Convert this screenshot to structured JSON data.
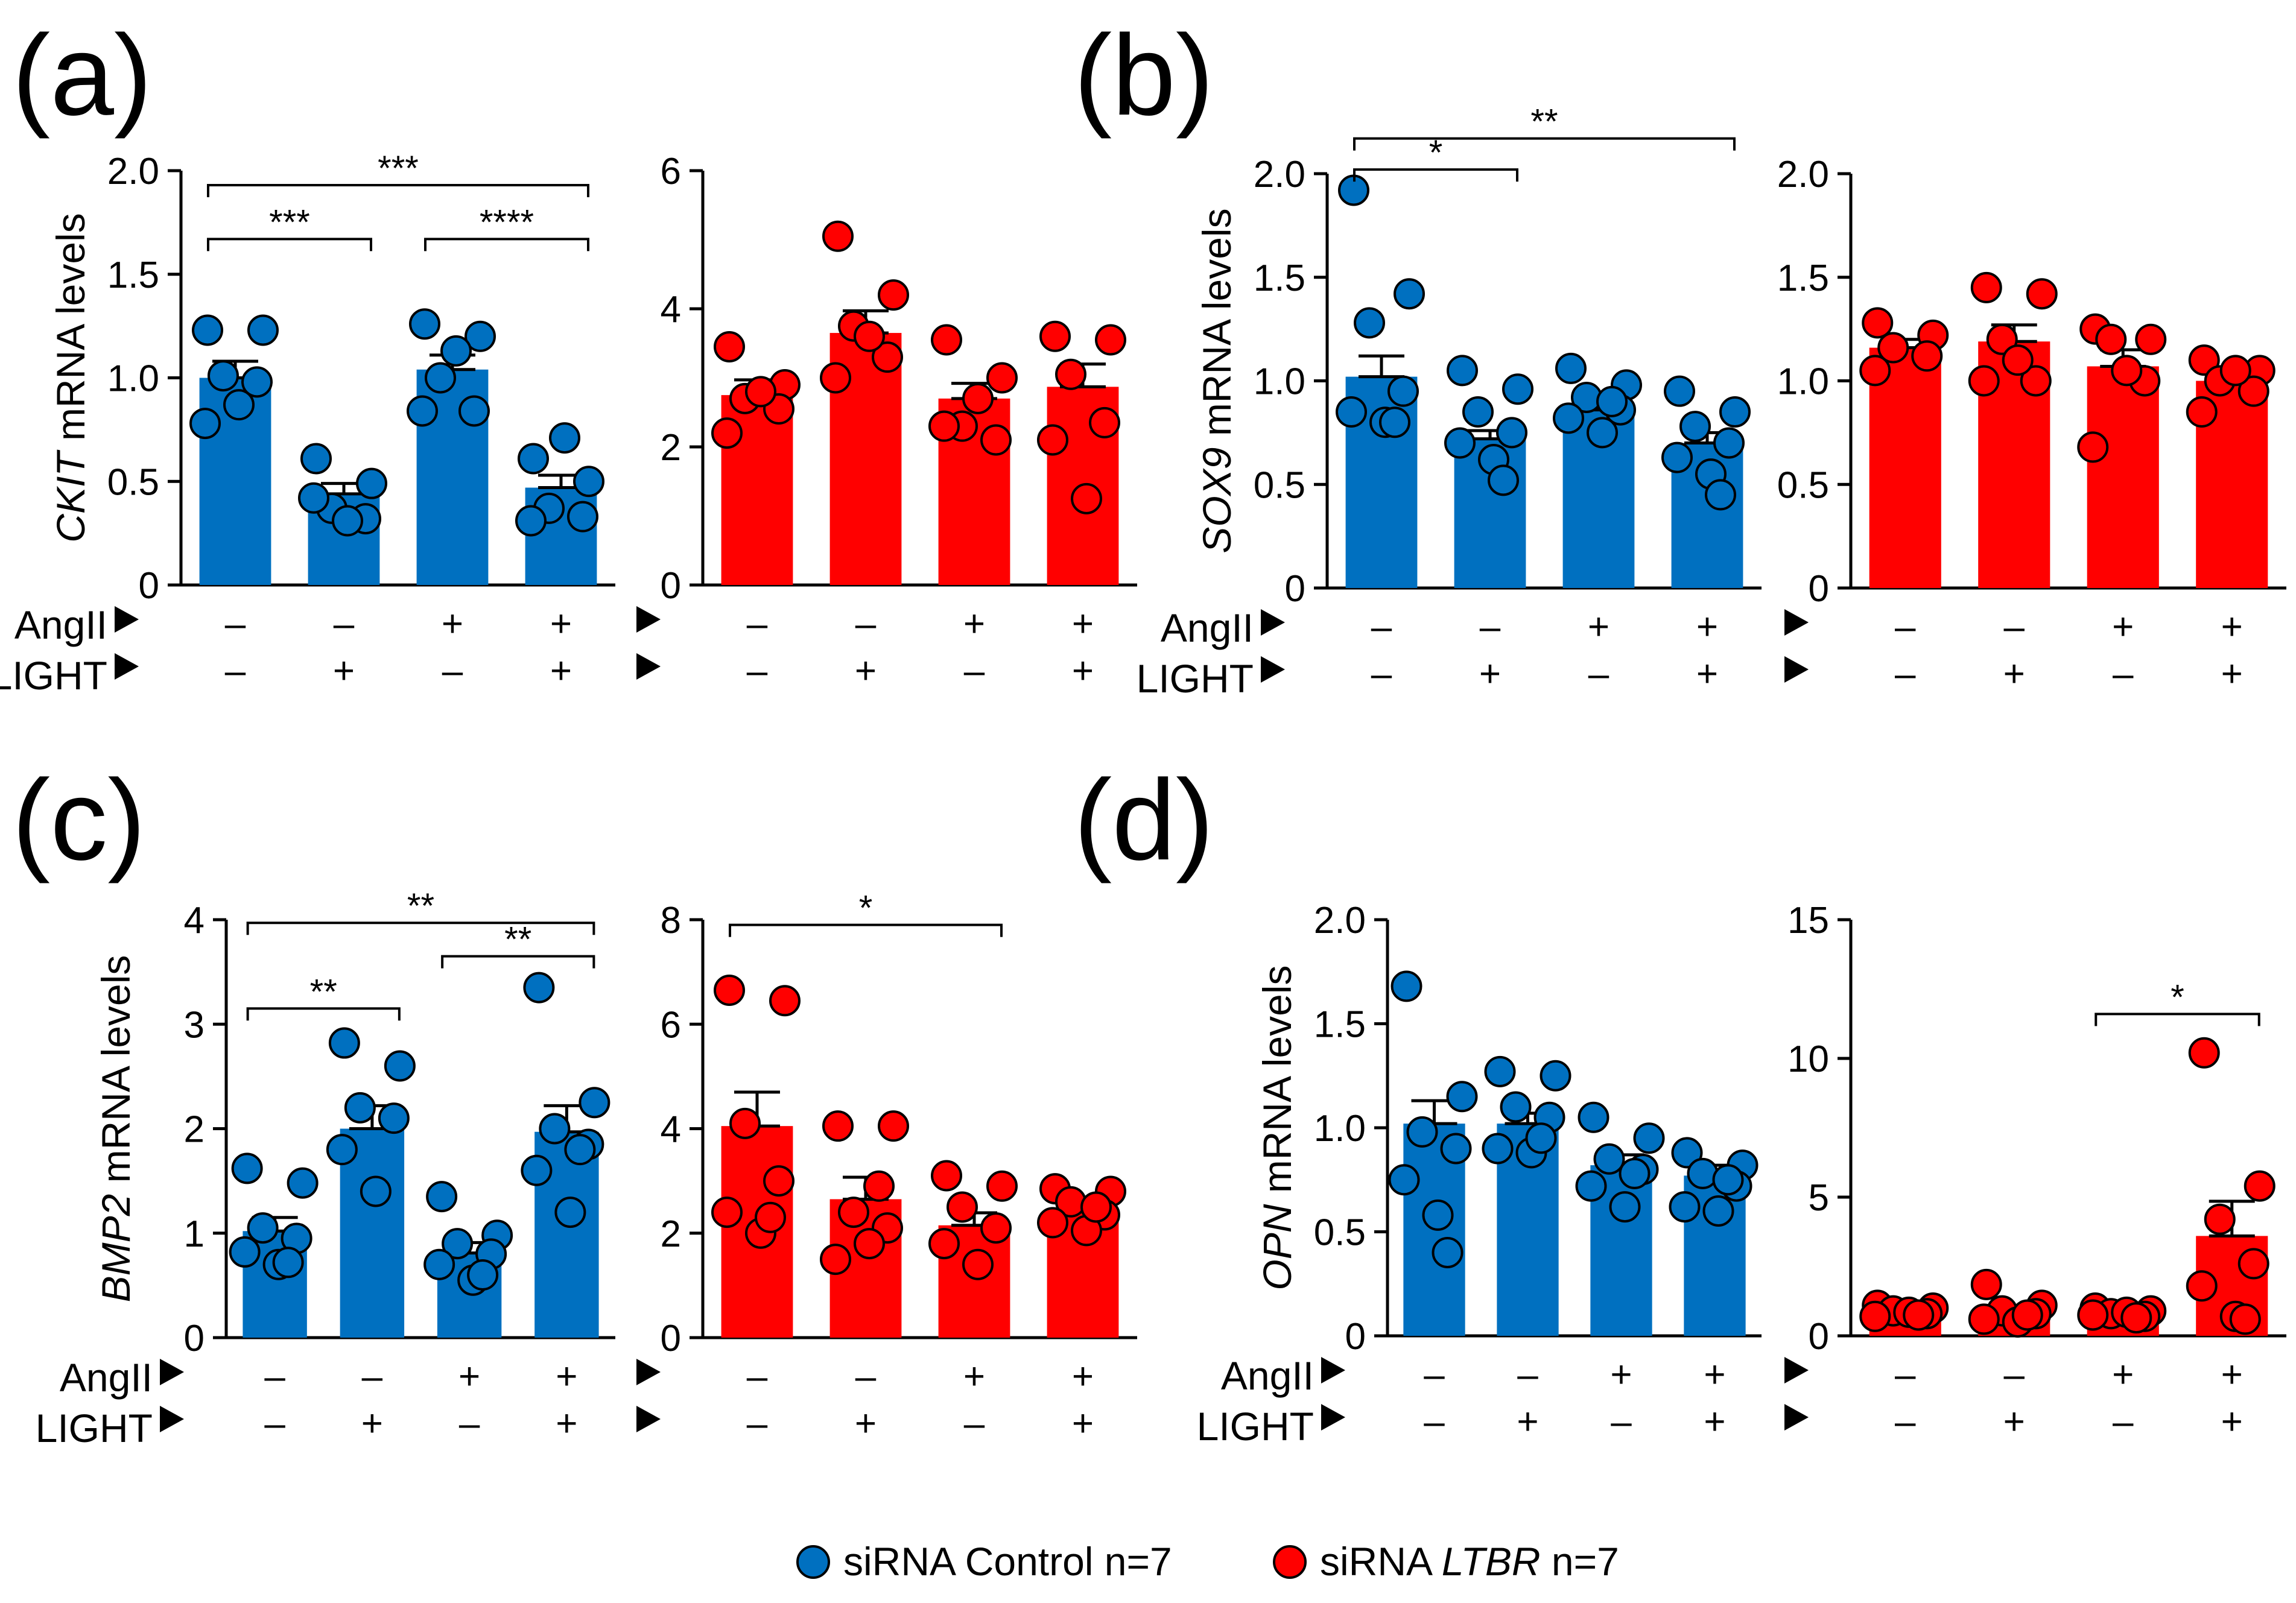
{
  "colors": {
    "control": "#0070C0",
    "ltbr": "#FF0000",
    "axis": "#000000"
  },
  "legend": {
    "control_label": "siRNA Control n=7",
    "ltbr_prefix": "siRNA ",
    "ltbr_gene": "LTBR",
    "ltbr_suffix": " n=7"
  },
  "treatment_labels": {
    "angii": "AngII",
    "light": "LIGHT"
  },
  "chart_data": [
    {
      "id": "a",
      "panel_label": "(a)",
      "type": "bar",
      "series": "siRNA Control",
      "color": "control",
      "ylabel": {
        "gene": "CKIT",
        "rest": " mRNA levels"
      },
      "ylim": [
        0,
        2.0
      ],
      "yticks": [
        "0",
        "0.5",
        "1.0",
        "1.5",
        "2.0"
      ],
      "categories": [
        "AngII- LIGHT-",
        "AngII- LIGHT+",
        "AngII+ LIGHT-",
        "AngII+ LIGHT+"
      ],
      "angii": [
        "–",
        "–",
        "+",
        "+"
      ],
      "light": [
        "–",
        "+",
        "–",
        "+"
      ],
      "values": [
        1.0,
        0.44,
        1.04,
        0.47
      ],
      "sem": [
        0.08,
        0.05,
        0.07,
        0.06
      ],
      "points": [
        [
          1.23,
          1.23,
          1.01,
          0.98,
          0.78,
          0.87
        ],
        [
          0.61,
          0.49,
          0.37,
          0.32,
          0.42,
          0.31
        ],
        [
          1.26,
          1.2,
          1.0,
          0.84,
          0.84,
          1.13
        ],
        [
          0.61,
          0.5,
          0.37,
          0.33,
          0.31,
          0.71
        ]
      ],
      "show_treatment_names": true,
      "significance": [
        {
          "from": 0,
          "to": 1,
          "label": "***",
          "level": 1.67
        },
        {
          "from": 2,
          "to": 3,
          "label": "****",
          "level": 1.67
        },
        {
          "from": 0,
          "to": 3,
          "label": "***",
          "level": 1.93
        }
      ]
    },
    {
      "id": "a2",
      "panel_label": "",
      "type": "bar",
      "series": "siRNA LTBR",
      "color": "ltbr",
      "ylabel": null,
      "ylim": [
        0,
        6
      ],
      "yticks": [
        "0",
        "2",
        "4",
        "6"
      ],
      "categories": [
        "AngII- LIGHT-",
        "AngII- LIGHT+",
        "AngII+ LIGHT-",
        "AngII+ LIGHT+"
      ],
      "angii": [
        "–",
        "–",
        "+",
        "+"
      ],
      "light": [
        "–",
        "+",
        "–",
        "+"
      ],
      "values": [
        2.75,
        3.65,
        2.7,
        2.87
      ],
      "sem": [
        0.22,
        0.32,
        0.22,
        0.33
      ],
      "points": [
        [
          3.45,
          2.9,
          2.7,
          2.55,
          2.2,
          2.8
        ],
        [
          5.05,
          4.2,
          3.75,
          3.3,
          3.0,
          3.6
        ],
        [
          3.55,
          3.0,
          2.3,
          2.1,
          2.3,
          2.7
        ],
        [
          3.6,
          3.55,
          3.05,
          2.35,
          2.1,
          1.25
        ]
      ],
      "show_treatment_names": false,
      "significance": []
    },
    {
      "id": "b",
      "panel_label": "(b)",
      "type": "bar",
      "series": "siRNA Control",
      "color": "control",
      "ylabel": {
        "gene": "SOX9",
        "rest": " mRNA levels"
      },
      "ylim": [
        0,
        2.0
      ],
      "yticks": [
        "0",
        "0.5",
        "1.0",
        "1.5",
        "2.0"
      ],
      "categories": [
        "AngII- LIGHT-",
        "AngII- LIGHT+",
        "AngII+ LIGHT-",
        "AngII+ LIGHT+"
      ],
      "angii": [
        "–",
        "–",
        "+",
        "+"
      ],
      "light": [
        "–",
        "+",
        "–",
        "+"
      ],
      "values": [
        1.02,
        0.72,
        0.86,
        0.7
      ],
      "sem": [
        0.1,
        0.04,
        0.03,
        0.05
      ],
      "points": [
        [
          1.92,
          1.42,
          1.28,
          0.95,
          0.85,
          0.8,
          0.8
        ],
        [
          1.05,
          0.96,
          0.85,
          0.75,
          0.7,
          0.62,
          0.52
        ],
        [
          1.06,
          0.98,
          0.92,
          0.86,
          0.82,
          0.75,
          0.9
        ],
        [
          0.95,
          0.85,
          0.78,
          0.7,
          0.63,
          0.55,
          0.45
        ]
      ],
      "show_treatment_names": true,
      "significance": [
        {
          "from": 0,
          "to": 1,
          "label": "*",
          "level": 2.02
        },
        {
          "from": 0,
          "to": 3,
          "label": "**",
          "level": 2.17
        }
      ]
    },
    {
      "id": "b2",
      "panel_label": "",
      "type": "bar",
      "series": "siRNA LTBR",
      "color": "ltbr",
      "ylabel": null,
      "ylim": [
        0,
        2.0
      ],
      "yticks": [
        "0",
        "0.5",
        "1.0",
        "1.5",
        "2.0"
      ],
      "categories": [
        "AngII- LIGHT-",
        "AngII- LIGHT+",
        "AngII+ LIGHT-",
        "AngII+ LIGHT+"
      ],
      "angii": [
        "–",
        "–",
        "+",
        "+"
      ],
      "light": [
        "–",
        "+",
        "–",
        "+"
      ],
      "values": [
        1.16,
        1.19,
        1.07,
        1.0
      ],
      "sem": [
        0.04,
        0.08,
        0.08,
        0.04
      ],
      "points": [
        [
          1.28,
          1.22,
          1.16,
          1.12,
          1.05
        ],
        [
          1.45,
          1.42,
          1.2,
          1.0,
          1.0,
          1.1
        ],
        [
          1.25,
          1.2,
          1.2,
          1.0,
          0.68,
          1.05
        ],
        [
          1.1,
          1.05,
          1.0,
          0.95,
          0.85,
          1.05
        ]
      ],
      "show_treatment_names": false,
      "significance": []
    },
    {
      "id": "c",
      "panel_label": "(c)",
      "type": "bar",
      "series": "siRNA Control",
      "color": "control",
      "ylabel": {
        "gene": "BMP2",
        "rest": " mRNA levels"
      },
      "ylim": [
        0,
        4
      ],
      "yticks": [
        "0",
        "1",
        "2",
        "3",
        "4"
      ],
      "categories": [
        "AngII- LIGHT-",
        "AngII- LIGHT+",
        "AngII+ LIGHT-",
        "AngII+ LIGHT+"
      ],
      "angii": [
        "–",
        "–",
        "+",
        "+"
      ],
      "light": [
        "–",
        "+",
        "–",
        "+"
      ],
      "values": [
        1.02,
        2.0,
        0.81,
        1.97
      ],
      "sem": [
        0.13,
        0.22,
        0.1,
        0.25
      ],
      "points": [
        [
          1.62,
          1.48,
          1.05,
          0.95,
          0.82,
          0.7,
          0.72
        ],
        [
          2.82,
          2.6,
          2.2,
          2.1,
          1.8,
          1.4
        ],
        [
          1.35,
          0.98,
          0.9,
          0.8,
          0.7,
          0.55,
          0.6
        ],
        [
          3.35,
          2.25,
          2.0,
          1.85,
          1.6,
          1.2,
          1.8
        ]
      ],
      "show_treatment_names": true,
      "significance": [
        {
          "from": 0,
          "to": 1,
          "label": "**",
          "level": 3.15
        },
        {
          "from": 2,
          "to": 3,
          "label": "**",
          "level": 3.65
        },
        {
          "from": 0,
          "to": 3,
          "label": "**",
          "level": 3.97
        }
      ]
    },
    {
      "id": "c2",
      "panel_label": "",
      "type": "bar",
      "series": "siRNA LTBR",
      "color": "ltbr",
      "ylabel": null,
      "ylim": [
        0,
        8
      ],
      "yticks": [
        "0",
        "2",
        "4",
        "6",
        "8"
      ],
      "categories": [
        "AngII- LIGHT-",
        "AngII- LIGHT+",
        "AngII+ LIGHT-",
        "AngII+ LIGHT+"
      ],
      "angii": [
        "–",
        "–",
        "+",
        "+"
      ],
      "light": [
        "–",
        "+",
        "–",
        "+"
      ],
      "values": [
        4.05,
        2.65,
        2.15,
        2.45
      ],
      "sem": [
        0.65,
        0.42,
        0.24,
        0.15
      ],
      "points": [
        [
          6.65,
          6.45,
          4.1,
          3.0,
          2.4,
          2.0,
          2.3
        ],
        [
          4.05,
          4.05,
          2.4,
          2.1,
          1.5,
          1.8,
          2.9
        ],
        [
          3.1,
          2.9,
          2.5,
          2.1,
          1.8,
          1.4
        ],
        [
          2.85,
          2.8,
          2.6,
          2.35,
          2.2,
          2.05,
          2.5
        ]
      ],
      "show_treatment_names": false,
      "significance": [
        {
          "from": 0,
          "to": 2,
          "label": "*",
          "level": 7.9
        }
      ]
    },
    {
      "id": "d",
      "panel_label": "(d)",
      "type": "bar",
      "series": "siRNA Control",
      "color": "control",
      "ylabel": {
        "gene": "OPN",
        "rest": " mRNA levels"
      },
      "ylim": [
        0,
        2.0
      ],
      "yticks": [
        "0",
        "0.5",
        "1.0",
        "1.5",
        "2.0"
      ],
      "categories": [
        "AngII- LIGHT-",
        "AngII- LIGHT+",
        "AngII+ LIGHT-",
        "AngII+ LIGHT+"
      ],
      "angii": [
        "–",
        "–",
        "+",
        "+"
      ],
      "light": [
        "–",
        "+",
        "–",
        "+"
      ],
      "values": [
        1.02,
        1.02,
        0.82,
        0.77
      ],
      "sem": [
        0.11,
        0.05,
        0.05,
        0.05
      ],
      "points": [
        [
          1.68,
          1.15,
          0.98,
          0.9,
          0.75,
          0.58,
          0.4
        ],
        [
          1.27,
          1.25,
          1.1,
          1.05,
          0.9,
          0.88,
          0.95
        ],
        [
          1.05,
          0.95,
          0.85,
          0.8,
          0.72,
          0.62,
          0.78
        ],
        [
          0.88,
          0.82,
          0.78,
          0.72,
          0.62,
          0.6,
          0.75
        ]
      ],
      "show_treatment_names": true,
      "significance": []
    },
    {
      "id": "d2",
      "panel_label": "",
      "type": "bar",
      "series": "siRNA LTBR",
      "color": "ltbr",
      "ylabel": null,
      "ylim": [
        0,
        15
      ],
      "yticks": [
        "0",
        "5",
        "10",
        "15"
      ],
      "categories": [
        "AngII- LIGHT-",
        "AngII- LIGHT+",
        "AngII+ LIGHT-",
        "AngII+ LIGHT+"
      ],
      "angii": [
        "–",
        "–",
        "+",
        "+"
      ],
      "light": [
        "–",
        "+",
        "–",
        "+"
      ],
      "values": [
        0.9,
        0.95,
        0.85,
        3.6
      ],
      "sem": [
        0.12,
        0.15,
        0.1,
        1.25
      ],
      "points": [
        [
          1.1,
          1.0,
          0.9,
          0.8,
          0.7,
          0.85,
          0.75
        ],
        [
          1.85,
          1.1,
          0.9,
          0.8,
          0.6,
          0.5,
          0.75
        ],
        [
          1.0,
          0.9,
          0.8,
          0.7,
          0.75,
          0.85,
          0.65
        ],
        [
          10.2,
          5.4,
          4.2,
          2.6,
          1.8,
          0.7,
          0.6
        ]
      ],
      "show_treatment_names": false,
      "significance": [
        {
          "from": 2,
          "to": 3,
          "label": "*",
          "level": 11.6
        }
      ]
    }
  ]
}
